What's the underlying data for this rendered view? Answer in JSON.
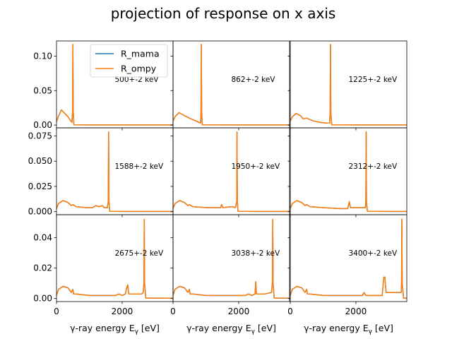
{
  "title": "projection of response on x axis",
  "legend": {
    "placement": "upper-right of first panel",
    "entries": [
      {
        "label": "R_mama",
        "color": "#1f77b4"
      },
      {
        "label": "R_ompy",
        "color": "#ff7f0e"
      }
    ]
  },
  "chart_data": {
    "type": "line",
    "rows": 3,
    "cols": 3,
    "shared_x": true,
    "shared_y_per_row": true,
    "xlim": [
      0,
      3550
    ],
    "xticks": [
      0,
      2000
    ],
    "xlabel_text": "γ-ray energy E",
    "xlabel_sub": "γ",
    "xlabel_unit": "[eV]",
    "rows_meta": [
      {
        "ylim": [
          -0.004,
          0.122
        ],
        "yticks": [
          0.0,
          0.05,
          0.1
        ],
        "ytick_labels": [
          "0.00",
          "0.05",
          "0.10"
        ]
      },
      {
        "ylim": [
          -0.003,
          0.083
        ],
        "yticks": [
          0.0,
          0.025,
          0.05,
          0.075
        ],
        "ytick_labels": [
          "0.000",
          "0.025",
          "0.050",
          "0.075"
        ]
      },
      {
        "ylim": [
          -0.002,
          0.055
        ],
        "yticks": [
          0.0,
          0.02,
          0.04
        ],
        "ytick_labels": [
          "0.00",
          "0.02",
          "0.04"
        ]
      }
    ],
    "panels": [
      {
        "label": "500+-2 keV",
        "x": [
          0,
          60,
          150,
          250,
          350,
          420,
          470,
          490,
          500,
          510,
          530,
          600,
          1000,
          2000,
          3550
        ],
        "y": [
          0.005,
          0.013,
          0.022,
          0.017,
          0.012,
          0.007,
          0.004,
          0.02,
          0.117,
          0.02,
          0.0005,
          0.0003,
          0.0002,
          0.0002,
          0.0002
        ]
      },
      {
        "label": "862+-2 keV",
        "x": [
          0,
          60,
          180,
          300,
          420,
          550,
          700,
          780,
          840,
          852,
          862,
          872,
          890,
          1000,
          2000,
          3550
        ],
        "y": [
          0.006,
          0.012,
          0.018,
          0.015,
          0.012,
          0.009,
          0.006,
          0.004,
          0.003,
          0.02,
          0.117,
          0.02,
          0.0005,
          0.0003,
          0.0002,
          0.0002
        ]
      },
      {
        "label": "1225+-2 keV",
        "x": [
          0,
          60,
          180,
          300,
          400,
          500,
          700,
          900,
          1100,
          1200,
          1215,
          1225,
          1235,
          1260,
          1500,
          2500,
          3550
        ],
        "y": [
          0.006,
          0.012,
          0.017,
          0.014,
          0.009,
          0.01,
          0.006,
          0.004,
          0.003,
          0.003,
          0.02,
          0.117,
          0.02,
          0.0005,
          0.0003,
          0.0002,
          0.0002
        ]
      },
      {
        "label": "1588+-2 keV",
        "x": [
          0,
          60,
          200,
          350,
          450,
          500,
          600,
          900,
          1100,
          1200,
          1300,
          1400,
          1450,
          1550,
          1578,
          1588,
          1598,
          1620,
          2000,
          3550
        ],
        "y": [
          0.003,
          0.008,
          0.011,
          0.009,
          0.006,
          0.007,
          0.005,
          0.004,
          0.004,
          0.006,
          0.005,
          0.006,
          0.004,
          0.004,
          0.01,
          0.079,
          0.01,
          0.0004,
          0.0002,
          0.0002
        ]
      },
      {
        "label": "1950+-2 keV",
        "x": [
          0,
          60,
          200,
          350,
          450,
          500,
          600,
          1000,
          1300,
          1450,
          1480,
          1520,
          1800,
          1900,
          1940,
          1950,
          1960,
          1980,
          2500,
          3550
        ],
        "y": [
          0.003,
          0.008,
          0.011,
          0.009,
          0.006,
          0.007,
          0.005,
          0.004,
          0.004,
          0.004,
          0.007,
          0.004,
          0.005,
          0.004,
          0.01,
          0.079,
          0.01,
          0.0004,
          0.0002,
          0.0002
        ]
      },
      {
        "label": "2312+-2 keV",
        "x": [
          0,
          60,
          200,
          350,
          450,
          500,
          600,
          1000,
          1500,
          1750,
          1800,
          1830,
          1870,
          2200,
          2290,
          2302,
          2312,
          2322,
          2350,
          3000,
          3550
        ],
        "y": [
          0.003,
          0.008,
          0.011,
          0.009,
          0.006,
          0.007,
          0.005,
          0.004,
          0.003,
          0.003,
          0.01,
          0.004,
          0.004,
          0.004,
          0.004,
          0.01,
          0.079,
          0.01,
          0.0004,
          0.0002,
          0.0002
        ]
      },
      {
        "label": "2675+-2 keV",
        "x": [
          0,
          60,
          200,
          350,
          450,
          500,
          520,
          600,
          1000,
          1500,
          1800,
          1900,
          2000,
          2100,
          2150,
          2170,
          2200,
          2400,
          2600,
          2640,
          2665,
          2675,
          2685,
          2720,
          3550
        ],
        "y": [
          0.002,
          0.006,
          0.008,
          0.007,
          0.004,
          0.006,
          0.003,
          0.003,
          0.002,
          0.002,
          0.002,
          0.003,
          0.002,
          0.003,
          0.008,
          0.009,
          0.003,
          0.003,
          0.003,
          0.004,
          0.01,
          0.052,
          0.01,
          0.0003,
          0.0002
        ]
      },
      {
        "label": "3038+-2 keV",
        "x": [
          0,
          60,
          200,
          350,
          450,
          500,
          520,
          600,
          1000,
          1500,
          2000,
          2200,
          2300,
          2400,
          2500,
          2520,
          2540,
          2580,
          2800,
          3000,
          3028,
          3038,
          3048,
          3080,
          3550
        ],
        "y": [
          0.002,
          0.006,
          0.008,
          0.007,
          0.004,
          0.006,
          0.003,
          0.003,
          0.002,
          0.002,
          0.002,
          0.002,
          0.003,
          0.002,
          0.003,
          0.011,
          0.003,
          0.003,
          0.003,
          0.004,
          0.01,
          0.052,
          0.01,
          0.0003,
          0.0002
        ]
      },
      {
        "label": "3400+-2 keV",
        "x": [
          0,
          60,
          200,
          350,
          450,
          500,
          520,
          600,
          1000,
          1500,
          2000,
          2200,
          2250,
          2300,
          2500,
          2800,
          2850,
          2880,
          2920,
          3200,
          3380,
          3390,
          3400,
          3410,
          3450,
          3550
        ],
        "y": [
          0.002,
          0.006,
          0.008,
          0.007,
          0.004,
          0.006,
          0.003,
          0.003,
          0.002,
          0.002,
          0.002,
          0.002,
          0.004,
          0.002,
          0.002,
          0.002,
          0.014,
          0.014,
          0.004,
          0.004,
          0.004,
          0.01,
          0.052,
          0.01,
          0.0003,
          0.0002
        ]
      }
    ]
  }
}
